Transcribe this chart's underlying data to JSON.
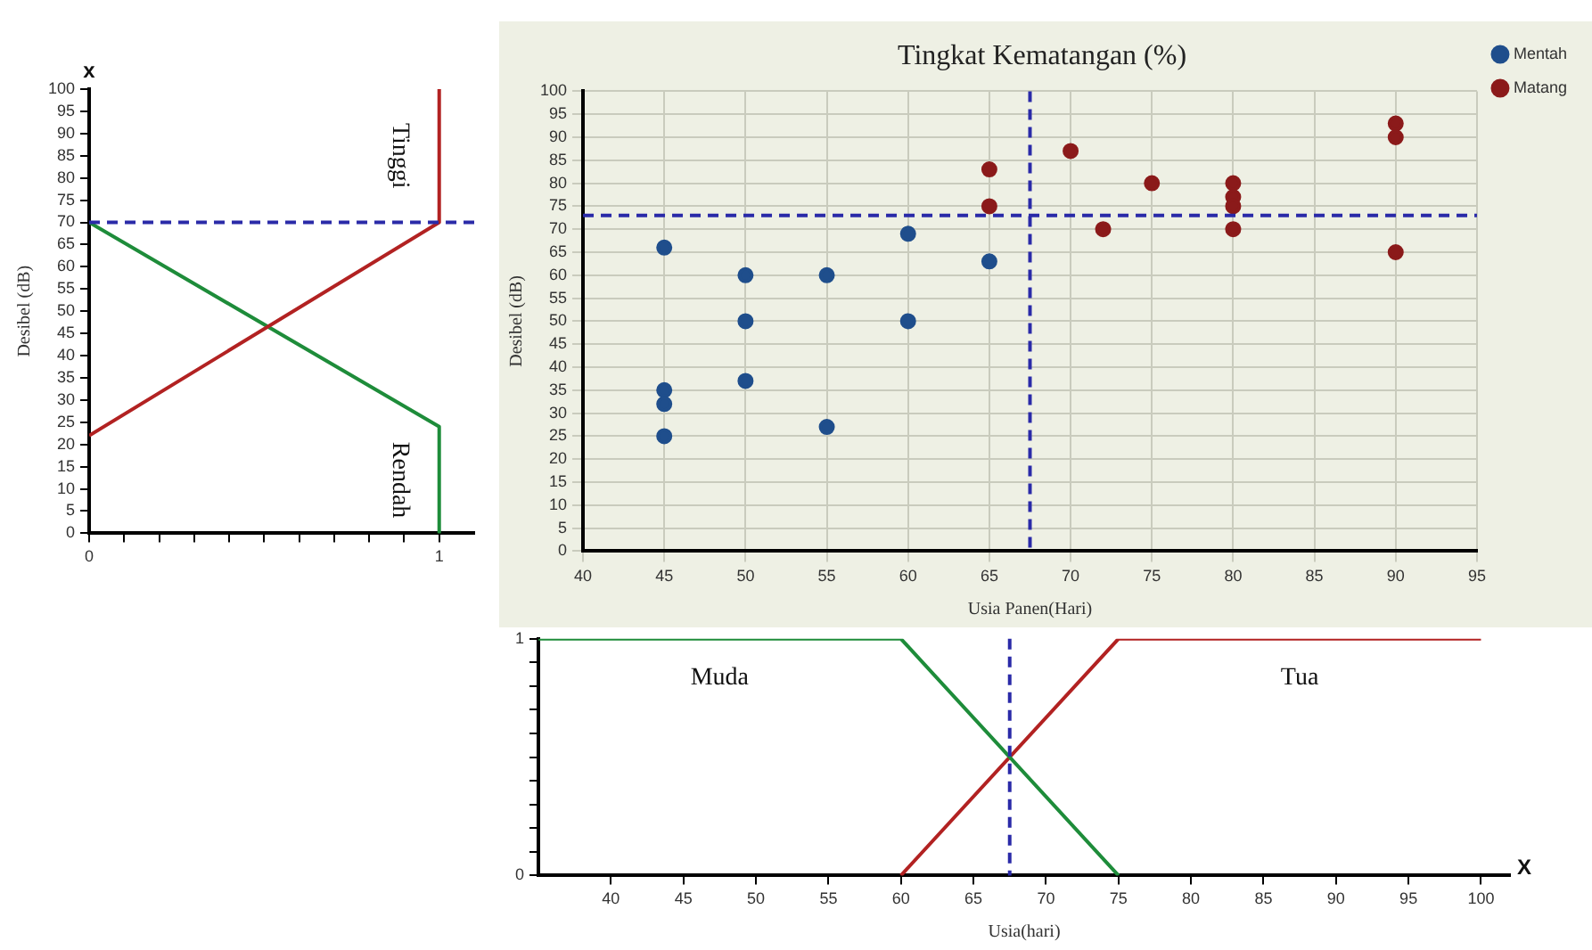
{
  "chart_data": [
    {
      "type": "scatter",
      "title": "Tingkat Kematangan (%)",
      "xlabel": "Usia Panen(Hari)",
      "ylabel": "Desibel (dB)",
      "xlim": [
        40,
        95
      ],
      "xticks": [
        40,
        45,
        50,
        55,
        60,
        65,
        70,
        75,
        80,
        85,
        90,
        95
      ],
      "ylim": [
        0,
        100
      ],
      "yticks": [
        0,
        5,
        10,
        15,
        20,
        25,
        30,
        35,
        40,
        45,
        50,
        55,
        60,
        65,
        70,
        75,
        80,
        85,
        90,
        95,
        100
      ],
      "grid": true,
      "legend": "top right",
      "marker": "circle",
      "series": [
        {
          "name": "Mentah",
          "color": "#1f4e8c",
          "x": [
            45,
            45,
            45,
            45,
            50,
            50,
            50,
            55,
            55,
            60,
            60,
            65
          ],
          "values": [
            66,
            35,
            32,
            25,
            60,
            50,
            37,
            60,
            27,
            69,
            50,
            63
          ]
        },
        {
          "name": "Matang",
          "color": "#8b1a1a",
          "x": [
            65,
            65,
            70,
            72,
            75,
            80,
            80,
            80,
            80,
            90,
            90,
            90
          ],
          "values": [
            83,
            75,
            87,
            70,
            80,
            80,
            77,
            75,
            70,
            93,
            90,
            65
          ]
        }
      ],
      "ref_lines": [
        {
          "axis": "y",
          "value": 73,
          "color": "#2a2aa8",
          "line_style": "dashed"
        },
        {
          "axis": "x",
          "value": 67.5,
          "color": "#2a2aa8",
          "line_style": "dashed"
        }
      ]
    },
    {
      "type": "line",
      "ylabel": "Desibel (dB)",
      "annotations": [
        "x"
      ],
      "xlim": [
        0,
        1.1
      ],
      "xticks": [
        {
          "value": 0,
          "label": "0"
        },
        {
          "value": 0.1,
          "label": null
        },
        {
          "value": 0.2,
          "label": null
        },
        {
          "value": 0.3,
          "label": null
        },
        {
          "value": 0.4,
          "label": null
        },
        {
          "value": 0.5,
          "label": null
        },
        {
          "value": 0.6,
          "label": null
        },
        {
          "value": 0.7,
          "label": null
        },
        {
          "value": 0.8,
          "label": null
        },
        {
          "value": 0.9,
          "label": null
        },
        {
          "value": 1,
          "label": "1"
        }
      ],
      "ylim": [
        0,
        100
      ],
      "yticks": [
        0,
        5,
        10,
        15,
        20,
        25,
        30,
        35,
        40,
        45,
        50,
        55,
        60,
        65,
        70,
        75,
        80,
        85,
        90,
        95,
        100
      ],
      "grid": false,
      "marker": "none",
      "line_style": "solid",
      "series": [
        {
          "name": "Tinggi",
          "color": "#b22222",
          "x": [
            0,
            1,
            1
          ],
          "values": [
            22,
            70,
            100
          ]
        },
        {
          "name": "Rendah",
          "color": "#1e8c3a",
          "x": [
            0,
            1,
            1
          ],
          "values": [
            70,
            24,
            0
          ]
        }
      ],
      "ref_lines": [
        {
          "axis": "y",
          "value": 70,
          "color": "#2a2aa8",
          "line_style": "dashed"
        }
      ]
    },
    {
      "type": "line",
      "xlabel": "Usia(hari)",
      "annotations": [
        "X"
      ],
      "xlim": [
        35,
        102
      ],
      "xticks": [
        40,
        45,
        50,
        55,
        60,
        65,
        70,
        75,
        80,
        85,
        90,
        95,
        100
      ],
      "ylim": [
        0,
        1
      ],
      "yticks": [
        {
          "value": 0,
          "label": "0"
        },
        {
          "value": 0.1,
          "label": null
        },
        {
          "value": 0.2,
          "label": null
        },
        {
          "value": 0.3,
          "label": null
        },
        {
          "value": 0.4,
          "label": null
        },
        {
          "value": 0.5,
          "label": null
        },
        {
          "value": 0.6,
          "label": null
        },
        {
          "value": 0.7,
          "label": null
        },
        {
          "value": 0.8,
          "label": null
        },
        {
          "value": 0.9,
          "label": null
        },
        {
          "value": 1,
          "label": "1"
        }
      ],
      "grid": false,
      "marker": "none",
      "line_style": "solid",
      "series": [
        {
          "name": "Muda",
          "color": "#1e8c3a",
          "x": [
            35,
            60,
            75
          ],
          "values": [
            1,
            1,
            0
          ]
        },
        {
          "name": "Tua",
          "color": "#b22222",
          "x": [
            60,
            75,
            100
          ],
          "values": [
            0,
            1,
            1
          ]
        }
      ],
      "ref_lines": [
        {
          "axis": "x",
          "value": 67.5,
          "color": "#2a2aa8",
          "line_style": "dashed"
        }
      ]
    }
  ]
}
